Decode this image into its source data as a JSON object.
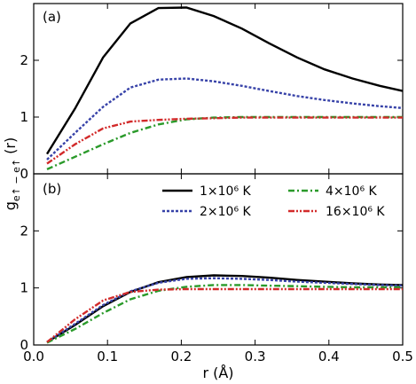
{
  "chart_data": [
    {
      "panel_label": "(a)",
      "type": "line",
      "xlim": [
        0,
        0.5
      ],
      "ylim": [
        0,
        3
      ],
      "yticks": [
        "0",
        "1",
        "2"
      ],
      "grid": false,
      "series": [
        {
          "name": "1×10⁶ K",
          "color": "#000000",
          "dash": "solid",
          "x": [
            0.018,
            0.056,
            0.094,
            0.131,
            0.169,
            0.207,
            0.244,
            0.282,
            0.319,
            0.357,
            0.394,
            0.432,
            0.469,
            0.5
          ],
          "y": [
            0.35,
            1.15,
            2.05,
            2.65,
            2.92,
            2.93,
            2.78,
            2.56,
            2.3,
            2.05,
            1.84,
            1.68,
            1.55,
            1.46
          ]
        },
        {
          "name": "2×10⁶ K",
          "color": "#3742a8",
          "dash": "dotted",
          "x": [
            0.018,
            0.056,
            0.094,
            0.131,
            0.169,
            0.207,
            0.244,
            0.282,
            0.319,
            0.357,
            0.394,
            0.432,
            0.469,
            0.5
          ],
          "y": [
            0.25,
            0.72,
            1.18,
            1.52,
            1.66,
            1.68,
            1.63,
            1.55,
            1.46,
            1.37,
            1.3,
            1.24,
            1.19,
            1.16
          ]
        },
        {
          "name": "4×10⁶ K",
          "color": "#2a9a2a",
          "dash": "dashdot",
          "x": [
            0.018,
            0.056,
            0.094,
            0.131,
            0.169,
            0.207,
            0.244,
            0.282,
            0.319,
            0.357,
            0.394,
            0.432,
            0.469,
            0.5
          ],
          "y": [
            0.08,
            0.3,
            0.52,
            0.72,
            0.87,
            0.96,
            0.99,
            1.0,
            1.0,
            1.0,
            1.0,
            1.0,
            1.0,
            1.0
          ]
        },
        {
          "name": "16×10⁶ K",
          "color": "#d22a2a",
          "dash": "dashdotdot",
          "x": [
            0.018,
            0.056,
            0.094,
            0.131,
            0.169,
            0.207,
            0.244,
            0.282,
            0.319,
            0.357,
            0.394,
            0.432,
            0.469,
            0.5
          ],
          "y": [
            0.18,
            0.52,
            0.8,
            0.92,
            0.95,
            0.97,
            0.98,
            0.99,
            0.99,
            0.99,
            0.99,
            0.99,
            0.99,
            0.99
          ]
        }
      ]
    },
    {
      "panel_label": "(b)",
      "type": "line",
      "xlim": [
        0,
        0.5
      ],
      "ylim": [
        0,
        3
      ],
      "xticks": [
        "0.0",
        "0.1",
        "0.2",
        "0.3",
        "0.4",
        "0.5"
      ],
      "yticks": [
        "0",
        "1",
        "2"
      ],
      "grid": false,
      "legend_location": "top",
      "series": [
        {
          "name": "1×10⁶ K",
          "color": "#000000",
          "dash": "solid",
          "x": [
            0.018,
            0.056,
            0.094,
            0.131,
            0.169,
            0.207,
            0.244,
            0.282,
            0.319,
            0.357,
            0.394,
            0.432,
            0.469,
            0.5
          ],
          "y": [
            0.05,
            0.35,
            0.68,
            0.93,
            1.1,
            1.19,
            1.22,
            1.21,
            1.18,
            1.14,
            1.11,
            1.08,
            1.06,
            1.05
          ]
        },
        {
          "name": "2×10⁶ K",
          "color": "#3742a8",
          "dash": "dotted",
          "x": [
            0.018,
            0.056,
            0.094,
            0.131,
            0.169,
            0.207,
            0.244,
            0.282,
            0.319,
            0.357,
            0.394,
            0.432,
            0.469,
            0.5
          ],
          "y": [
            0.05,
            0.37,
            0.7,
            0.94,
            1.09,
            1.16,
            1.17,
            1.16,
            1.14,
            1.11,
            1.09,
            1.07,
            1.05,
            1.04
          ]
        },
        {
          "name": "4×10⁶ K",
          "color": "#2a9a2a",
          "dash": "dashdot",
          "x": [
            0.018,
            0.056,
            0.094,
            0.131,
            0.169,
            0.207,
            0.244,
            0.282,
            0.319,
            0.357,
            0.394,
            0.432,
            0.469,
            0.5
          ],
          "y": [
            0.04,
            0.28,
            0.56,
            0.8,
            0.95,
            1.02,
            1.05,
            1.05,
            1.04,
            1.03,
            1.02,
            1.01,
            1.01,
            1.01
          ]
        },
        {
          "name": "16×10⁶ K",
          "color": "#d22a2a",
          "dash": "dashdotdot",
          "x": [
            0.018,
            0.056,
            0.094,
            0.131,
            0.169,
            0.207,
            0.244,
            0.282,
            0.319,
            0.357,
            0.394,
            0.432,
            0.469,
            0.5
          ],
          "y": [
            0.05,
            0.45,
            0.78,
            0.93,
            0.97,
            0.98,
            0.98,
            0.98,
            0.98,
            0.98,
            0.98,
            0.98,
            0.98,
            0.98
          ]
        }
      ]
    }
  ],
  "xlabel": "r (Å)",
  "ylabel_main": "g",
  "ylabel_sub": "e↑ − e↑",
  "ylabel_suffix": " (r)"
}
